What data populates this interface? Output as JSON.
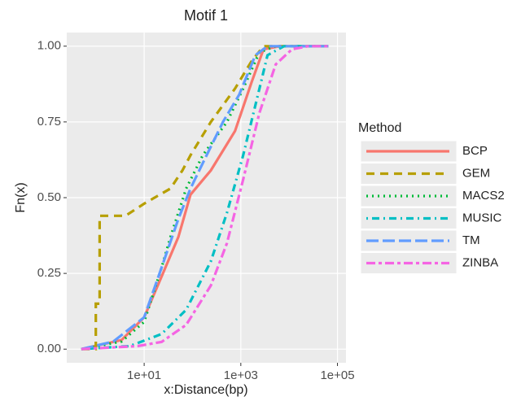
{
  "chart_data": {
    "type": "line",
    "title": "Motif 1",
    "x_label": "x:Distance(bp)",
    "y_label": "Fn(x)",
    "x_log": true,
    "grid": true,
    "legend_title": "Method",
    "legend_position": "right",
    "xlim": [
      0.25,
      150000
    ],
    "ylim": [
      -0.045,
      1.045
    ],
    "xticks": [
      {
        "value": 10,
        "label": "1e+01"
      },
      {
        "value": 1000,
        "label": "1e+03"
      },
      {
        "value": 100000,
        "label": "1e+05"
      }
    ],
    "yticks": [
      {
        "value": 0,
        "label": "0.00"
      },
      {
        "value": 0.25,
        "label": "0.25"
      },
      {
        "value": 0.5,
        "label": "0.50"
      },
      {
        "value": 0.75,
        "label": "0.75"
      },
      {
        "value": 1,
        "label": "1.00"
      }
    ],
    "series": [
      {
        "name": "BCP",
        "color": "#F8766D",
        "linetype": "solid",
        "x": [
          0.5,
          3.4,
          10,
          23,
          51,
          91,
          240,
          760,
          1660,
          2950,
          6420,
          65000
        ],
        "values": [
          0,
          0.03,
          0.105,
          0.24,
          0.37,
          0.51,
          0.59,
          0.72,
          0.88,
          0.99,
          1,
          1
        ]
      },
      {
        "name": "GEM",
        "color": "#B79F00",
        "linetype": "dashed",
        "x": [
          0.5,
          1.0,
          1.0,
          1.2,
          1.2,
          4.1,
          10,
          35,
          62,
          91,
          240,
          760,
          1660,
          2950,
          65000
        ],
        "values": [
          0,
          0,
          0.15,
          0.15,
          0.44,
          0.44,
          0.48,
          0.53,
          0.59,
          0.64,
          0.75,
          0.86,
          0.95,
          1,
          1
        ]
      },
      {
        "name": "MACS2",
        "color": "#00BA38",
        "linetype": "dotted",
        "x": [
          0.5,
          3.4,
          10,
          23,
          35,
          74,
          163,
          516,
          1120,
          2430,
          5270,
          65000
        ],
        "values": [
          0,
          0.025,
          0.09,
          0.27,
          0.37,
          0.53,
          0.64,
          0.75,
          0.86,
          0.98,
          1,
          1
        ]
      },
      {
        "name": "MUSIC",
        "color": "#00BFC4",
        "linetype": "dotdash",
        "x": [
          0.5,
          5.0,
          23,
          74,
          240,
          516,
          1120,
          2430,
          3560,
          7800,
          65000
        ],
        "values": [
          0,
          0.01,
          0.05,
          0.13,
          0.29,
          0.45,
          0.64,
          0.86,
          0.97,
          1,
          1
        ]
      },
      {
        "name": "TM",
        "color": "#619CFF",
        "linetype": "longdash",
        "x": [
          0.5,
          2.3,
          10,
          23,
          51,
          91,
          196,
          427,
          925,
          2000,
          3560,
          65000
        ],
        "values": [
          0,
          0.025,
          0.105,
          0.27,
          0.43,
          0.53,
          0.64,
          0.75,
          0.84,
          0.97,
          1,
          1
        ]
      },
      {
        "name": "ZINBA",
        "color": "#F564E3",
        "linetype": "twodash",
        "x": [
          0.5,
          7.3,
          23,
          74,
          240,
          516,
          1120,
          2430,
          5270,
          11500,
          24700,
          65000
        ],
        "values": [
          0,
          0.01,
          0.024,
          0.08,
          0.21,
          0.35,
          0.56,
          0.78,
          0.94,
          0.99,
          1,
          1
        ]
      }
    ]
  }
}
